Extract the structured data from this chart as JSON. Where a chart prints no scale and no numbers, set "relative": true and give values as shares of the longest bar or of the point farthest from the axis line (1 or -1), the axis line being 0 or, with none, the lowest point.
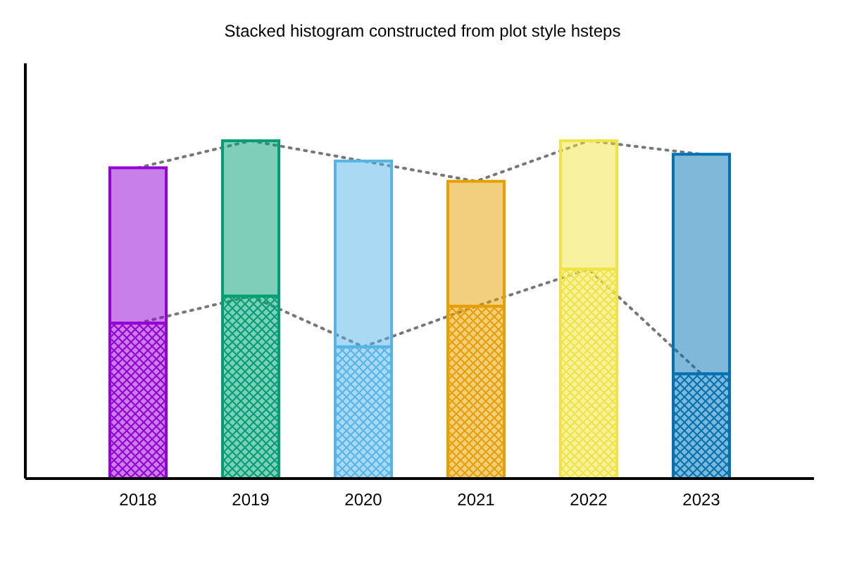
{
  "chart_data": {
    "type": "bar",
    "title": "Stacked histogram constructed from plot style hsteps",
    "categories": [
      "2018",
      "2019",
      "2020",
      "2021",
      "2022",
      "2023"
    ],
    "relative": true,
    "stacked": true,
    "series": [
      {
        "colors": [
          "#9400d3",
          "#009e73",
          "#56b4e9",
          "#e69f00",
          "#f0e442",
          "#0072b2"
        ],
        "values": [
          0.46,
          0.54,
          0.39,
          0.51,
          0.62,
          0.31
        ]
      },
      {
        "colors": [
          "#9400d3",
          "#009e73",
          "#56b4e9",
          "#e69f00",
          "#f0e442",
          "#0072b2"
        ],
        "values": [
          0.46,
          0.46,
          0.55,
          0.37,
          0.38,
          0.65
        ]
      }
    ]
  }
}
